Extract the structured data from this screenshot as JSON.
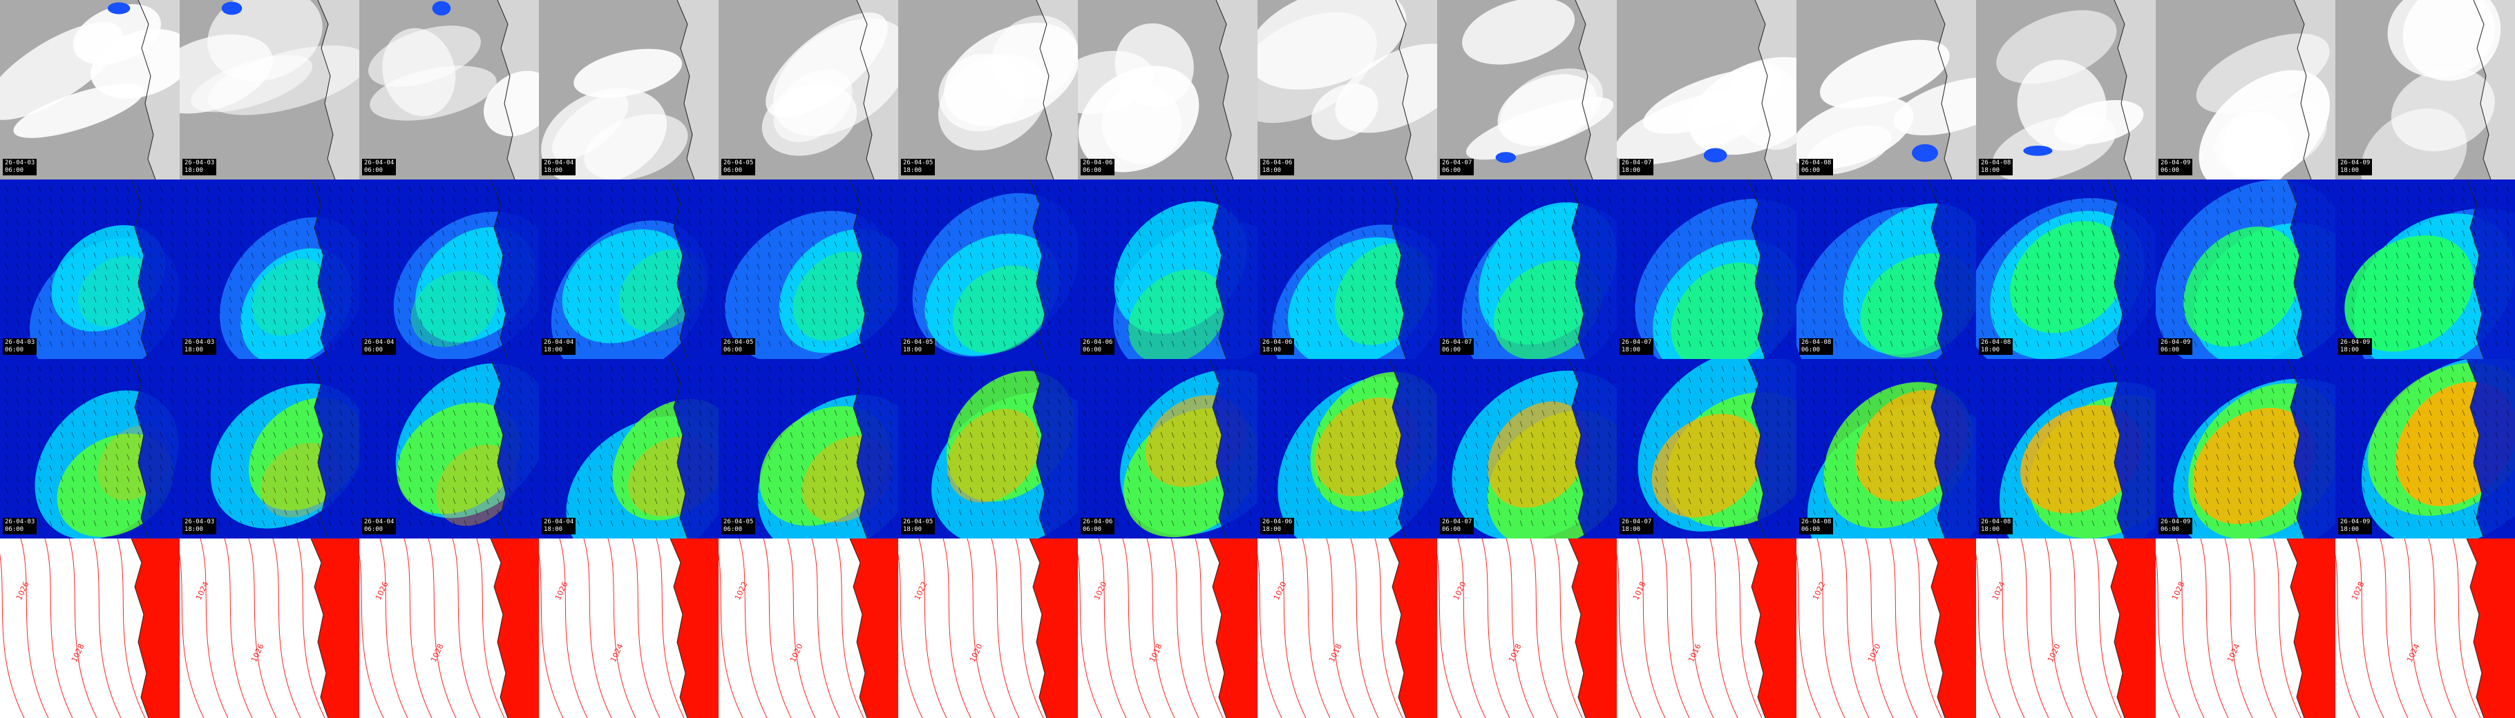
{
  "panel_grid": {
    "rows": [
      {
        "name": "satellite",
        "colors": {
          "bg": "#aaaaaa",
          "cloud": "#ffffff",
          "precip": "#1650ff"
        }
      },
      {
        "name": "wind-speed",
        "colors": {
          "bg": "#0018c8",
          "mid": "#1a78ff",
          "high": "#00e0ff",
          "peak": "#22ff66"
        }
      },
      {
        "name": "wind-gust",
        "colors": {
          "bg": "#0018c8",
          "mid": "#00d8ff",
          "high": "#55ff33",
          "peak": "#ffb000"
        }
      },
      {
        "name": "pressure",
        "colors": {
          "bg": "#ffffff",
          "land": "#ff1100",
          "isobar": "#ff2222"
        }
      }
    ],
    "timestamps": [
      {
        "date": "26-04-03",
        "time": "06:00"
      },
      {
        "date": "26-04-03",
        "time": "18:00"
      },
      {
        "date": "26-04-04",
        "time": "06:00"
      },
      {
        "date": "26-04-04",
        "time": "18:00"
      },
      {
        "date": "26-04-05",
        "time": "06:00"
      },
      {
        "date": "26-04-05",
        "time": "18:00"
      },
      {
        "date": "26-04-06",
        "time": "06:00"
      },
      {
        "date": "26-04-06",
        "time": "18:00"
      },
      {
        "date": "26-04-07",
        "time": "06:00"
      },
      {
        "date": "26-04-07",
        "time": "18:00"
      },
      {
        "date": "26-04-08",
        "time": "06:00"
      },
      {
        "date": "26-04-08",
        "time": "18:00"
      },
      {
        "date": "26-04-09",
        "time": "06:00"
      },
      {
        "date": "26-04-09",
        "time": "18:00"
      }
    ],
    "isobar_labels": [
      [
        "1026",
        "1028"
      ],
      [
        "1024",
        "1026"
      ],
      [
        "1026",
        "1028"
      ],
      [
        "1026",
        "1024"
      ],
      [
        "1022",
        "1020"
      ],
      [
        "1022",
        "1020"
      ],
      [
        "1020",
        "1018"
      ],
      [
        "1020",
        "1018"
      ],
      [
        "1020",
        "1018"
      ],
      [
        "1018",
        "1016"
      ],
      [
        "1022",
        "1020"
      ],
      [
        "1024",
        "1020"
      ],
      [
        "1028",
        "1024"
      ],
      [
        "1028",
        "1024"
      ]
    ]
  }
}
